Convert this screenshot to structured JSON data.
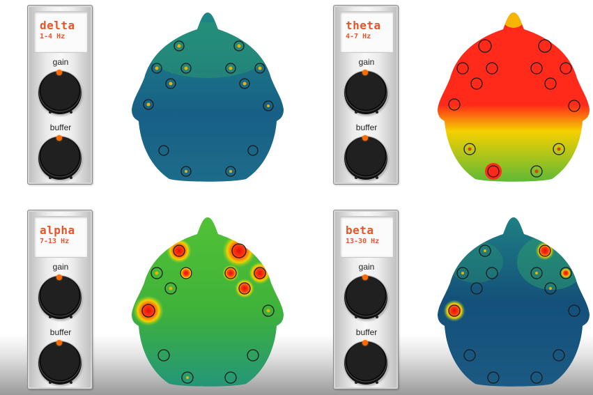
{
  "knob_labels": {
    "gain": "gain",
    "buffer": "buffer"
  },
  "bands": [
    {
      "name": "delta",
      "range": "1-4 Hz",
      "topomap": "cool-blue-green"
    },
    {
      "name": "theta",
      "range": "4-7 Hz",
      "topomap": "hot-red-frontal"
    },
    {
      "name": "alpha",
      "range": "7-13 Hz",
      "topomap": "green-with-red-hotspots"
    },
    {
      "name": "beta",
      "range": "13-30 Hz",
      "topomap": "deep-blue-green"
    }
  ],
  "colors": {
    "label_orange": "#e8542a",
    "knob_indicator": "#ff6a00",
    "electrode_ring": "#1a1a1a"
  }
}
